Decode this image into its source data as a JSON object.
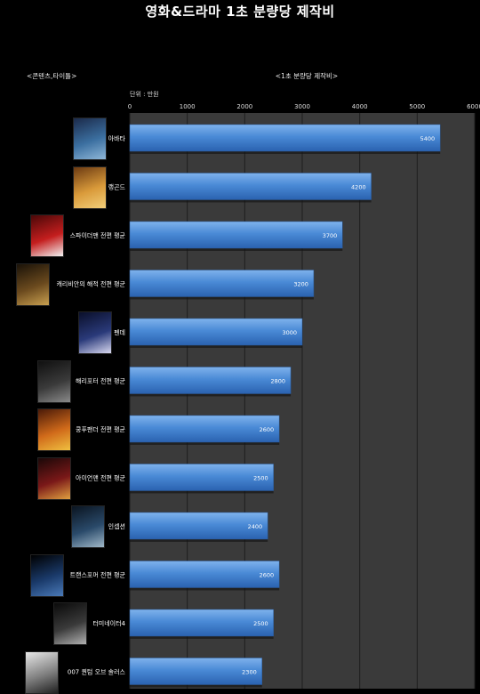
{
  "title": "영화&드라마 1초 분량당 제작비",
  "header_left": "<콘텐츠,타이틀>",
  "header_right": "<1초 분량당 제작비>",
  "unit": "단위 : 만원",
  "chart_data": {
    "type": "bar",
    "orientation": "horizontal",
    "title": "영화&드라마 1초 분량당 제작비",
    "categories": [
      "아바타",
      "랭곤드",
      "스파이더맨 전편 평균",
      "캐리비안의 해적 전편 평균",
      "펜데",
      "해리포터 전편 평균",
      "쿵푸팬더 전편 평균",
      "아이언맨 전편 평균",
      "인셉션",
      "트랜스포머 전편 평균",
      "터미네이터4",
      "007 퀀텀 오브 솔러스"
    ],
    "values": [
      5400,
      4200,
      3700,
      3200,
      3000,
      2800,
      2600,
      2500,
      2400,
      2600,
      2500,
      2300
    ],
    "xlim": [
      0,
      6000
    ],
    "x_ticks": [
      0,
      1000,
      2000,
      3000,
      4000,
      5000,
      6000
    ],
    "grid": true,
    "bar_color": "#4a8ad6",
    "plot_background": "#3a3a3a"
  },
  "posters": [
    {
      "name": "avatar-poster",
      "colors": [
        "#1b2a4a",
        "#3b6fa0",
        "#8fb7d8"
      ]
    },
    {
      "name": "rapunzel-poster",
      "colors": [
        "#6b3a12",
        "#d99a3a",
        "#f2cf7a"
      ]
    },
    {
      "name": "spiderman-poster",
      "colors": [
        "#4a0808",
        "#c41e1e",
        "#f2f2f2"
      ]
    },
    {
      "name": "pirates-poster",
      "colors": [
        "#1a1208",
        "#6b4a1e",
        "#c9a050"
      ]
    },
    {
      "name": "film5-poster",
      "colors": [
        "#0a0f2a",
        "#2a3a7a",
        "#d8d8f0"
      ]
    },
    {
      "name": "harrypotter-poster",
      "colors": [
        "#101010",
        "#3a3a3a",
        "#8a8a8a"
      ]
    },
    {
      "name": "kungfupanda-poster",
      "colors": [
        "#4a1a08",
        "#d06a1a",
        "#f0c040"
      ]
    },
    {
      "name": "ironman-poster",
      "colors": [
        "#1a0808",
        "#7a1818",
        "#e0a040"
      ]
    },
    {
      "name": "inception-poster",
      "colors": [
        "#0a1420",
        "#2a4a6a",
        "#a0b8c8"
      ]
    },
    {
      "name": "transformers-poster",
      "colors": [
        "#000000",
        "#1a3a6a",
        "#4a7ab8"
      ]
    },
    {
      "name": "terminator-poster",
      "colors": [
        "#0a0a0a",
        "#3a3a3a",
        "#b0b0b0"
      ]
    },
    {
      "name": "007-poster",
      "colors": [
        "#e8e8e8",
        "#808080",
        "#202020"
      ]
    }
  ]
}
